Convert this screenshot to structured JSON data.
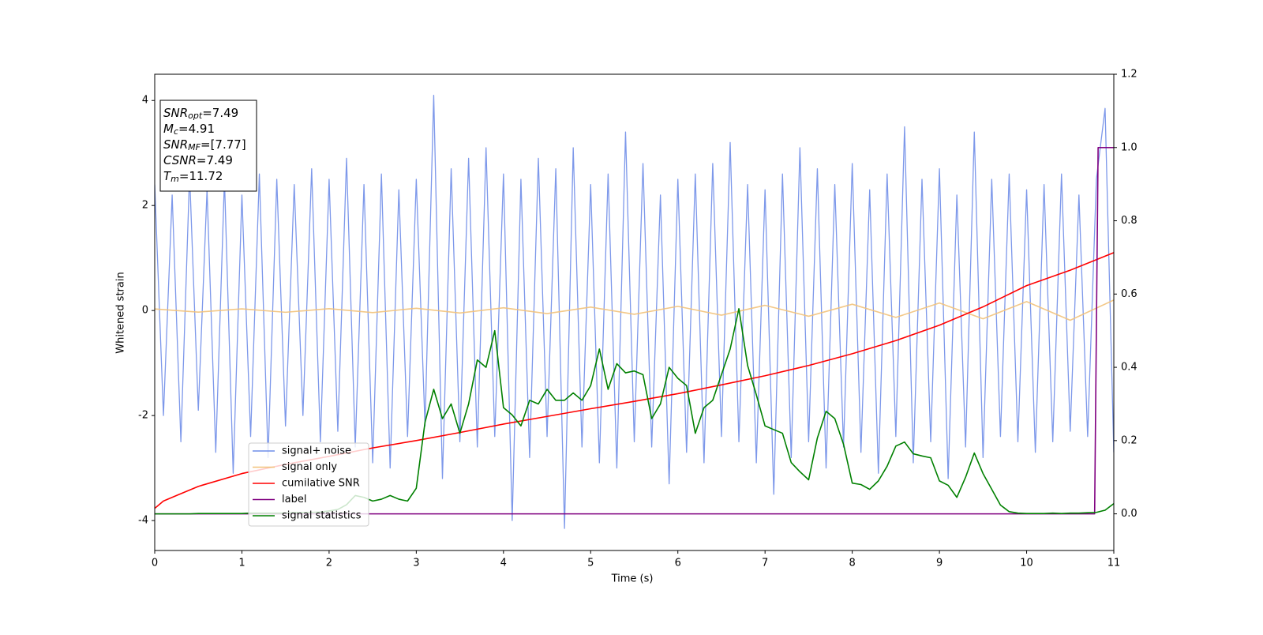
{
  "chart_data": {
    "type": "line",
    "xlabel": "Time (s)",
    "ylabel": "Whitened strain",
    "xlim": [
      0,
      11
    ],
    "xticks": [
      0,
      1,
      2,
      3,
      4,
      5,
      6,
      7,
      8,
      9,
      10,
      11
    ],
    "ylim": [
      -4.57,
      4.5
    ],
    "yticks": [
      -4,
      -2,
      0,
      2,
      4
    ],
    "y2lim": [
      -0.1,
      1.2
    ],
    "y2ticks": [
      {
        "value": 0,
        "label": "0.0"
      },
      0.2,
      0.4,
      0.6,
      0.8,
      {
        "value": 1,
        "label": "1.0"
      },
      1.2
    ],
    "legend": true,
    "annotation": [
      {
        "base": "SNR",
        "sub": "opt",
        "text": "=7.49"
      },
      {
        "base": "M",
        "sub": "c",
        "text": "=4.91"
      },
      {
        "base": "SNR",
        "sub": "MF",
        "text": "=[7.77]"
      },
      {
        "base": "CSNR",
        "text": "=7.49"
      },
      {
        "base": "T",
        "sub": "m",
        "text": "=11.72"
      }
    ],
    "x": [
      0,
      0.1,
      0.2,
      0.3,
      0.4,
      0.5,
      0.6,
      0.7,
      0.8,
      0.9,
      1,
      1.1,
      1.2,
      1.3,
      1.4,
      1.5,
      1.6,
      1.7,
      1.8,
      1.9,
      2,
      2.1,
      2.2,
      2.3,
      2.4,
      2.5,
      2.6,
      2.7,
      2.8,
      2.9,
      3,
      3.1,
      3.2,
      3.3,
      3.4,
      3.5,
      3.6,
      3.7,
      3.8,
      3.9,
      4,
      4.1,
      4.2,
      4.3,
      4.4,
      4.5,
      4.6,
      4.7,
      4.8,
      4.9,
      5,
      5.1,
      5.2,
      5.3,
      5.4,
      5.5,
      5.6,
      5.7,
      5.8,
      5.9,
      6,
      6.1,
      6.2,
      6.3,
      6.4,
      6.5,
      6.6,
      6.7,
      6.8,
      6.9,
      7,
      7.1,
      7.2,
      7.3,
      7.4,
      7.5,
      7.6,
      7.7,
      7.8,
      7.9,
      8,
      8.1,
      8.2,
      8.3,
      8.4,
      8.5,
      8.6,
      8.7,
      8.8,
      8.9,
      9,
      9.1,
      9.2,
      9.3,
      9.4,
      9.5,
      9.6,
      9.7,
      9.8,
      9.9,
      10,
      10.1,
      10.2,
      10.3,
      10.4,
      10.5,
      10.6,
      10.7,
      10.8,
      10.9,
      11
    ],
    "series": [
      {
        "name": "signal+ noise",
        "color": "#6f8de8",
        "axis": "y",
        "values": [
          2.4,
          -2.0,
          2.2,
          -2.5,
          2.6,
          -1.9,
          2.3,
          -2.7,
          2.5,
          -3.1,
          2.2,
          -2.4,
          2.6,
          -2.8,
          2.5,
          -2.2,
          2.4,
          -2.0,
          2.7,
          -2.5,
          2.5,
          -2.3,
          2.9,
          -2.6,
          2.4,
          -2.9,
          2.6,
          -3.0,
          2.3,
          -2.4,
          2.5,
          -2.2,
          4.1,
          -3.2,
          2.7,
          -2.5,
          2.9,
          -2.6,
          3.1,
          -2.4,
          2.6,
          -4.0,
          2.5,
          -2.8,
          2.9,
          -2.4,
          2.7,
          -4.15,
          3.1,
          -2.6,
          2.4,
          -2.9,
          2.6,
          -3.0,
          3.4,
          -2.5,
          2.8,
          -2.6,
          2.2,
          -3.3,
          2.5,
          -2.7,
          2.6,
          -2.9,
          2.8,
          -2.4,
          3.2,
          -2.5,
          2.4,
          -2.9,
          2.3,
          -3.5,
          2.6,
          -2.8,
          3.1,
          -2.5,
          2.7,
          -3.0,
          2.4,
          -2.6,
          2.8,
          -2.7,
          2.3,
          -3.1,
          2.6,
          -2.4,
          3.5,
          -2.9,
          2.5,
          -2.5,
          2.7,
          -3.2,
          2.2,
          -2.6,
          3.4,
          -2.8,
          2.5,
          -2.4,
          2.6,
          -2.5,
          2.3,
          -2.7,
          2.4,
          -2.5,
          2.6,
          -2.3,
          2.2,
          -2.4,
          2.5,
          3.85,
          -2.7
        ]
      },
      {
        "name": "signal only",
        "color": "#f2c27a",
        "axis": "y",
        "x": [
          0,
          0.5,
          1,
          1.5,
          2,
          2.5,
          3,
          3.5,
          4,
          4.5,
          5,
          5.5,
          6,
          6.5,
          7,
          7.5,
          8,
          8.5,
          9,
          9.5,
          10,
          10.5,
          11
        ],
        "values": [
          0.03,
          -0.03,
          0.031,
          -0.033,
          0.036,
          -0.039,
          0.043,
          -0.047,
          0.052,
          -0.058,
          0.065,
          -0.072,
          0.08,
          -0.089,
          0.099,
          -0.109,
          0.12,
          -0.131,
          0.144,
          -0.157,
          0.17,
          -0.185,
          0.2
        ]
      },
      {
        "name": "cumilative SNR",
        "color": "#ff0000",
        "axis": "y2",
        "x": [
          0,
          0.1,
          0.25,
          0.5,
          1,
          1.5,
          2,
          2.5,
          3,
          3.5,
          4,
          4.5,
          5,
          5.5,
          6,
          6.5,
          7,
          7.5,
          8,
          8.5,
          9,
          9.5,
          10,
          10.5,
          11
        ],
        "values": [
          0.015,
          0.035,
          0.05,
          0.075,
          0.11,
          0.135,
          0.157,
          0.18,
          0.2,
          0.222,
          0.245,
          0.266,
          0.287,
          0.307,
          0.328,
          0.352,
          0.377,
          0.405,
          0.437,
          0.473,
          0.515,
          0.565,
          0.623,
          0.665,
          0.713
        ]
      },
      {
        "name": "label",
        "color": "#800080",
        "axis": "y2",
        "x": [
          0,
          10.78,
          10.82,
          11
        ],
        "values": [
          0,
          0,
          1,
          1
        ]
      },
      {
        "name": "signal statistics",
        "color": "#008000",
        "axis": "y2",
        "values": [
          0,
          0,
          0,
          0,
          0,
          0.001,
          0.001,
          0.001,
          0.001,
          0.001,
          0.001,
          0.002,
          0.002,
          0.002,
          0.002,
          0.002,
          0.003,
          0.003,
          0.004,
          0.005,
          0.008,
          0.012,
          0.025,
          0.05,
          0.045,
          0.035,
          0.04,
          0.05,
          0.04,
          0.035,
          0.07,
          0.25,
          0.34,
          0.26,
          0.3,
          0.22,
          0.3,
          0.42,
          0.4,
          0.5,
          0.29,
          0.27,
          0.24,
          0.31,
          0.3,
          0.34,
          0.31,
          0.31,
          0.33,
          0.31,
          0.35,
          0.45,
          0.34,
          0.41,
          0.385,
          0.39,
          0.38,
          0.26,
          0.3,
          0.4,
          0.37,
          0.35,
          0.22,
          0.29,
          0.31,
          0.38,
          0.45,
          0.56,
          0.405,
          0.325,
          0.24,
          0.23,
          0.22,
          0.14,
          0.115,
          0.093,
          0.207,
          0.28,
          0.26,
          0.19,
          0.084,
          0.08,
          0.067,
          0.09,
          0.13,
          0.185,
          0.196,
          0.164,
          0.158,
          0.153,
          0.09,
          0.078,
          0.045,
          0.1,
          0.166,
          0.11,
          0.067,
          0.024,
          0.006,
          0.002,
          0.001,
          0.001,
          0.001,
          0.002,
          0.001,
          0.002,
          0.002,
          0.003,
          0.004,
          0.01,
          0.028
        ]
      }
    ]
  }
}
